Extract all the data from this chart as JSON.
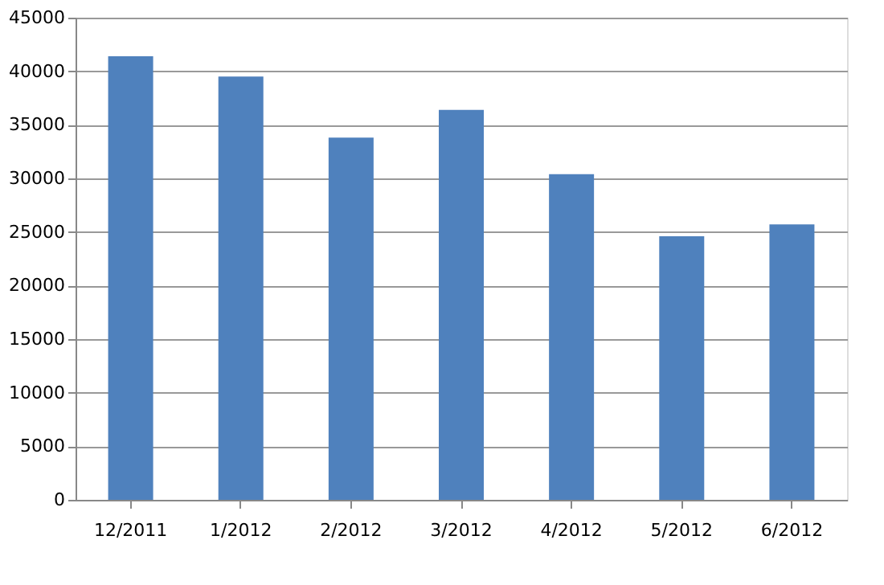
{
  "chart_data": {
    "type": "bar",
    "categories": [
      "12/2011",
      "1/2012",
      "2/2012",
      "3/2012",
      "4/2012",
      "5/2012",
      "6/2012"
    ],
    "values": [
      41400,
      39500,
      33800,
      36400,
      30400,
      24600,
      25700
    ],
    "color": "#4f81bd",
    "ylim": [
      0,
      45000
    ],
    "yticks": [
      0,
      5000,
      10000,
      15000,
      20000,
      25000,
      30000,
      35000,
      40000,
      45000
    ],
    "grid": "y"
  }
}
